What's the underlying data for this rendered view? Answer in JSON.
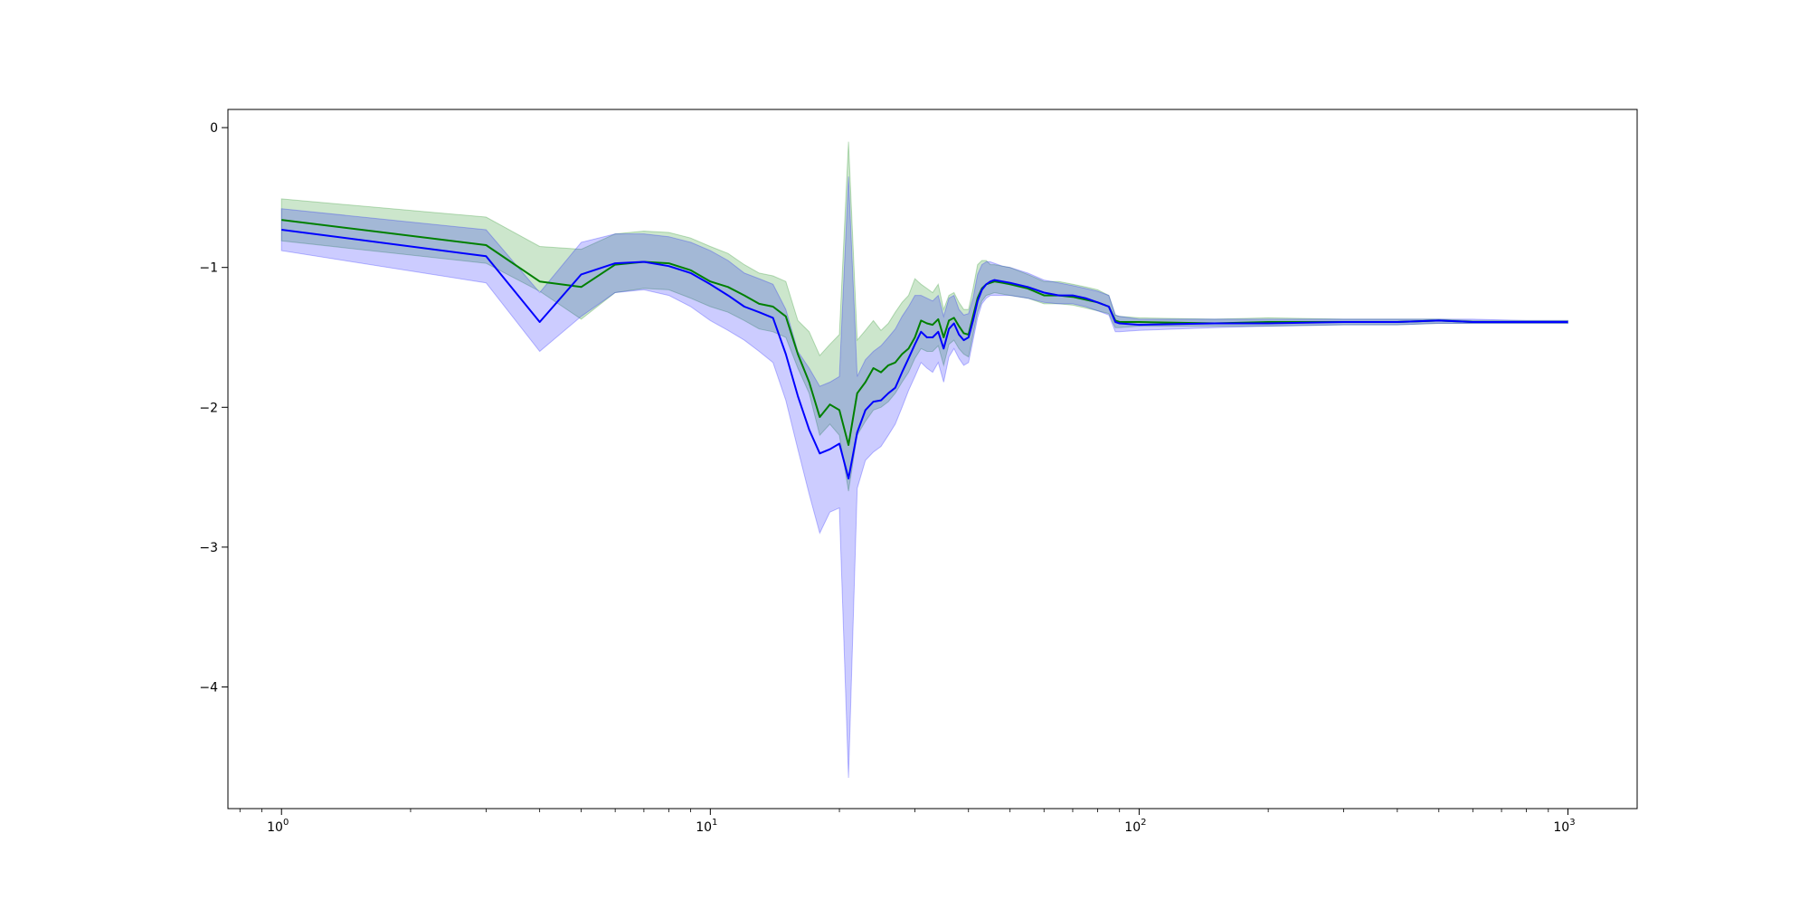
{
  "chart_data": {
    "type": "line",
    "title": "",
    "xlabel": "",
    "ylabel": "",
    "x_scale": "log",
    "xlim": [
      0.75,
      1450
    ],
    "ylim": [
      -4.87,
      0.13
    ],
    "grid": false,
    "legend": "none",
    "x_ticks": [
      {
        "value": 1,
        "base": "10",
        "exp": "0"
      },
      {
        "value": 10,
        "base": "10",
        "exp": "1"
      },
      {
        "value": 100,
        "base": "10",
        "exp": "2"
      },
      {
        "value": 1000,
        "base": "10",
        "exp": "3"
      }
    ],
    "y_ticks": [
      {
        "value": 0,
        "label": "0"
      },
      {
        "value": -1,
        "label": "−1"
      },
      {
        "value": -2,
        "label": "−2"
      },
      {
        "value": -3,
        "label": "−3"
      },
      {
        "value": -4,
        "label": "−4"
      }
    ],
    "series": [
      {
        "color": "#008000",
        "fill_color": "#008000",
        "fill_opacity": 0.2,
        "x": [
          1,
          3,
          4,
          5,
          6,
          7,
          8,
          9,
          10,
          11,
          12,
          13,
          14,
          15,
          16,
          17,
          18,
          19,
          20,
          21,
          22,
          23,
          24,
          25,
          26,
          27,
          28,
          29,
          30,
          31,
          32,
          33,
          34,
          35,
          36,
          37,
          38,
          39,
          40,
          41,
          42,
          43,
          44,
          45,
          46,
          48,
          50,
          55,
          60,
          65,
          70,
          75,
          80,
          85,
          88,
          90,
          100,
          150,
          200,
          300,
          400,
          500,
          600,
          800,
          1000
        ],
        "y": [
          -0.66,
          -0.84,
          -1.1,
          -1.14,
          -0.98,
          -0.96,
          -0.97,
          -1.02,
          -1.1,
          -1.14,
          -1.2,
          -1.26,
          -1.28,
          -1.35,
          -1.62,
          -1.82,
          -2.07,
          -1.98,
          -2.02,
          -2.27,
          -1.9,
          -1.82,
          -1.72,
          -1.75,
          -1.7,
          -1.68,
          -1.62,
          -1.58,
          -1.5,
          -1.38,
          -1.4,
          -1.41,
          -1.37,
          -1.5,
          -1.38,
          -1.36,
          -1.42,
          -1.47,
          -1.48,
          -1.35,
          -1.22,
          -1.15,
          -1.12,
          -1.11,
          -1.1,
          -1.11,
          -1.12,
          -1.15,
          -1.2,
          -1.2,
          -1.21,
          -1.23,
          -1.25,
          -1.28,
          -1.38,
          -1.39,
          -1.39,
          -1.4,
          -1.39,
          -1.39,
          -1.39,
          -1.38,
          -1.39,
          -1.39,
          -1.39
        ],
        "lower": [
          -0.81,
          -0.97,
          -1.17,
          -1.37,
          -1.18,
          -1.15,
          -1.16,
          -1.22,
          -1.28,
          -1.32,
          -1.38,
          -1.44,
          -1.46,
          -1.5,
          -1.72,
          -1.9,
          -2.2,
          -2.12,
          -2.2,
          -2.6,
          -2.2,
          -2.1,
          -2.02,
          -2.0,
          -1.96,
          -1.9,
          -1.82,
          -1.75,
          -1.65,
          -1.58,
          -1.6,
          -1.6,
          -1.56,
          -1.7,
          -1.55,
          -1.52,
          -1.58,
          -1.62,
          -1.64,
          -1.48,
          -1.32,
          -1.24,
          -1.2,
          -1.19,
          -1.18,
          -1.19,
          -1.2,
          -1.22,
          -1.26,
          -1.26,
          -1.27,
          -1.29,
          -1.31,
          -1.33,
          -1.43,
          -1.43,
          -1.42,
          -1.42,
          -1.42,
          -1.41,
          -1.41,
          -1.4,
          -1.4,
          -1.4,
          -1.4
        ],
        "upper": [
          -0.51,
          -0.64,
          -0.85,
          -0.87,
          -0.76,
          -0.74,
          -0.75,
          -0.79,
          -0.85,
          -0.9,
          -0.98,
          -1.04,
          -1.06,
          -1.1,
          -1.38,
          -1.46,
          -1.63,
          -1.55,
          -1.48,
          -0.1,
          -1.52,
          -1.45,
          -1.38,
          -1.45,
          -1.4,
          -1.32,
          -1.25,
          -1.2,
          -1.08,
          -1.12,
          -1.15,
          -1.18,
          -1.12,
          -1.3,
          -1.2,
          -1.18,
          -1.25,
          -1.3,
          -1.3,
          -1.15,
          -0.98,
          -0.95,
          -0.95,
          -0.98,
          -0.98,
          -0.99,
          -1.0,
          -1.05,
          -1.1,
          -1.1,
          -1.12,
          -1.14,
          -1.16,
          -1.2,
          -1.34,
          -1.35,
          -1.36,
          -1.37,
          -1.36,
          -1.37,
          -1.37,
          -1.37,
          -1.38,
          -1.38,
          -1.38
        ]
      },
      {
        "color": "#0000ff",
        "fill_color": "#0000ff",
        "fill_opacity": 0.2,
        "x": [
          1,
          3,
          4,
          5,
          6,
          7,
          8,
          9,
          10,
          11,
          12,
          13,
          14,
          15,
          16,
          17,
          18,
          19,
          20,
          21,
          22,
          23,
          24,
          25,
          26,
          27,
          28,
          29,
          30,
          31,
          32,
          33,
          34,
          35,
          36,
          37,
          38,
          39,
          40,
          41,
          42,
          43,
          44,
          45,
          46,
          48,
          50,
          55,
          60,
          65,
          70,
          75,
          80,
          85,
          88,
          90,
          100,
          150,
          200,
          300,
          400,
          500,
          600,
          800,
          1000
        ],
        "y": [
          -0.73,
          -0.92,
          -1.39,
          -1.05,
          -0.97,
          -0.96,
          -0.99,
          -1.04,
          -1.12,
          -1.2,
          -1.28,
          -1.32,
          -1.36,
          -1.62,
          -1.92,
          -2.16,
          -2.33,
          -2.3,
          -2.26,
          -2.51,
          -2.18,
          -2.02,
          -1.96,
          -1.95,
          -1.9,
          -1.86,
          -1.75,
          -1.65,
          -1.55,
          -1.46,
          -1.5,
          -1.5,
          -1.46,
          -1.58,
          -1.44,
          -1.4,
          -1.48,
          -1.52,
          -1.5,
          -1.38,
          -1.24,
          -1.16,
          -1.12,
          -1.1,
          -1.09,
          -1.1,
          -1.11,
          -1.14,
          -1.18,
          -1.2,
          -1.2,
          -1.22,
          -1.25,
          -1.28,
          -1.39,
          -1.4,
          -1.41,
          -1.4,
          -1.4,
          -1.39,
          -1.39,
          -1.38,
          -1.39,
          -1.39,
          -1.39
        ],
        "lower": [
          -0.88,
          -1.11,
          -1.6,
          -1.35,
          -1.18,
          -1.16,
          -1.2,
          -1.28,
          -1.38,
          -1.45,
          -1.52,
          -1.6,
          -1.68,
          -1.95,
          -2.3,
          -2.62,
          -2.9,
          -2.75,
          -2.72,
          -4.65,
          -2.58,
          -2.38,
          -2.32,
          -2.28,
          -2.2,
          -2.12,
          -2.0,
          -1.88,
          -1.78,
          -1.68,
          -1.72,
          -1.75,
          -1.68,
          -1.82,
          -1.64,
          -1.58,
          -1.65,
          -1.7,
          -1.68,
          -1.52,
          -1.36,
          -1.26,
          -1.22,
          -1.2,
          -1.2,
          -1.2,
          -1.2,
          -1.22,
          -1.25,
          -1.26,
          -1.26,
          -1.28,
          -1.31,
          -1.34,
          -1.46,
          -1.46,
          -1.45,
          -1.43,
          -1.42,
          -1.41,
          -1.41,
          -1.4,
          -1.4,
          -1.4,
          -1.4
        ],
        "upper": [
          -0.58,
          -0.73,
          -1.18,
          -0.82,
          -0.76,
          -0.76,
          -0.78,
          -0.82,
          -0.88,
          -0.95,
          -1.04,
          -1.08,
          -1.12,
          -1.3,
          -1.6,
          -1.72,
          -1.85,
          -1.82,
          -1.78,
          -0.35,
          -1.78,
          -1.66,
          -1.6,
          -1.56,
          -1.5,
          -1.44,
          -1.35,
          -1.28,
          -1.2,
          -1.2,
          -1.22,
          -1.24,
          -1.2,
          -1.35,
          -1.22,
          -1.2,
          -1.3,
          -1.34,
          -1.33,
          -1.22,
          -1.05,
          -0.98,
          -0.96,
          -0.96,
          -0.97,
          -0.99,
          -1.0,
          -1.04,
          -1.09,
          -1.11,
          -1.13,
          -1.15,
          -1.17,
          -1.2,
          -1.34,
          -1.35,
          -1.37,
          -1.37,
          -1.37,
          -1.37,
          -1.37,
          -1.37,
          -1.37,
          -1.38,
          -1.38
        ]
      }
    ]
  }
}
